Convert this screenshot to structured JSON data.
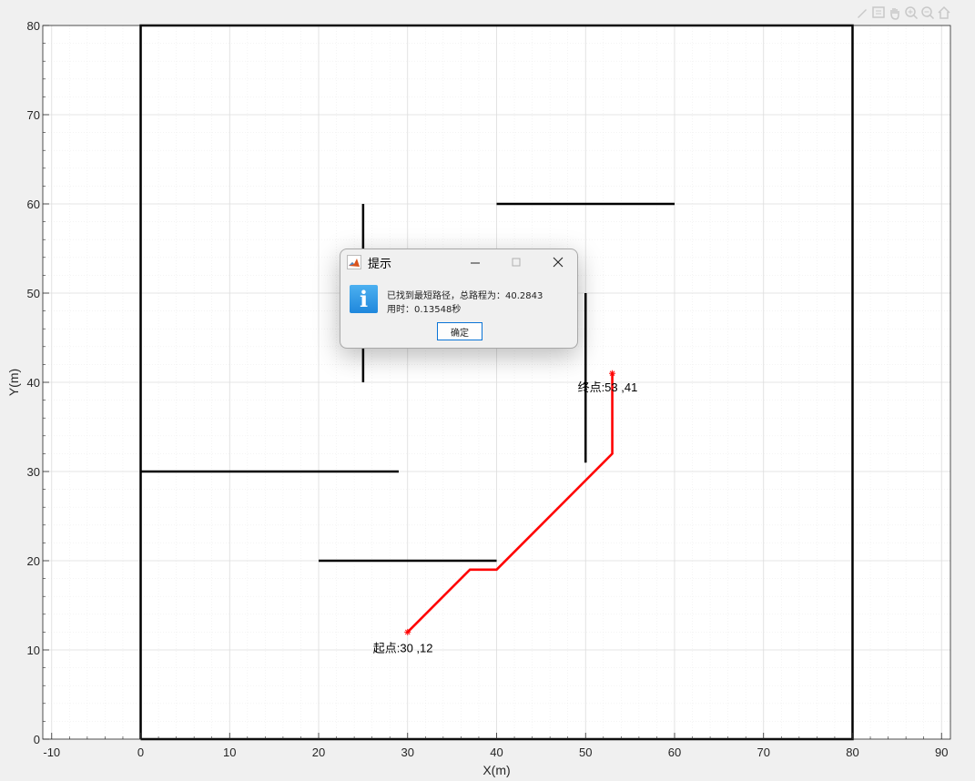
{
  "chart_data": {
    "type": "line",
    "xlabel": "X(m)",
    "ylabel": "Y(m)",
    "xlim": [
      -11,
      91
    ],
    "ylim": [
      0,
      80
    ],
    "xticks": [
      -10,
      0,
      10,
      20,
      30,
      40,
      50,
      60,
      70,
      80,
      90
    ],
    "yticks": [
      0,
      10,
      20,
      30,
      40,
      50,
      60,
      70,
      80
    ],
    "x_tick_labels": [
      "-10",
      "0",
      "10",
      "20",
      "30",
      "40",
      "50",
      "60",
      "70",
      "80",
      "90"
    ],
    "y_tick_labels": [
      "0",
      "10",
      "20",
      "30",
      "40",
      "50",
      "60",
      "70",
      "80"
    ],
    "grid": true,
    "minor_grid": true,
    "boundary": {
      "x": [
        0,
        80,
        80,
        0,
        0
      ],
      "y": [
        0,
        0,
        80,
        80,
        0
      ],
      "color": "#000000"
    },
    "obstacles": [
      {
        "x": [
          25,
          25
        ],
        "y": [
          40,
          60
        ]
      },
      {
        "x": [
          40,
          60
        ],
        "y": [
          60,
          60
        ]
      },
      {
        "x": [
          50,
          50
        ],
        "y": [
          31,
          50
        ]
      },
      {
        "x": [
          0,
          29
        ],
        "y": [
          30,
          30
        ]
      },
      {
        "x": [
          20,
          40
        ],
        "y": [
          20,
          20
        ]
      }
    ],
    "path": {
      "x": [
        30,
        37,
        40,
        53,
        53
      ],
      "y": [
        12,
        19,
        19,
        32,
        41
      ],
      "color": "#ff0000"
    },
    "start": {
      "x": 30,
      "y": 12,
      "label": "起点:30 ,12"
    },
    "goal": {
      "x": 53,
      "y": 41,
      "label": "终点:53 ,41"
    }
  },
  "dialog": {
    "title": "提示",
    "message_line1": "已找到最短路径，总路程为：40.2843",
    "message_line2": "用时：0.13548秒",
    "ok_label": "确定"
  }
}
